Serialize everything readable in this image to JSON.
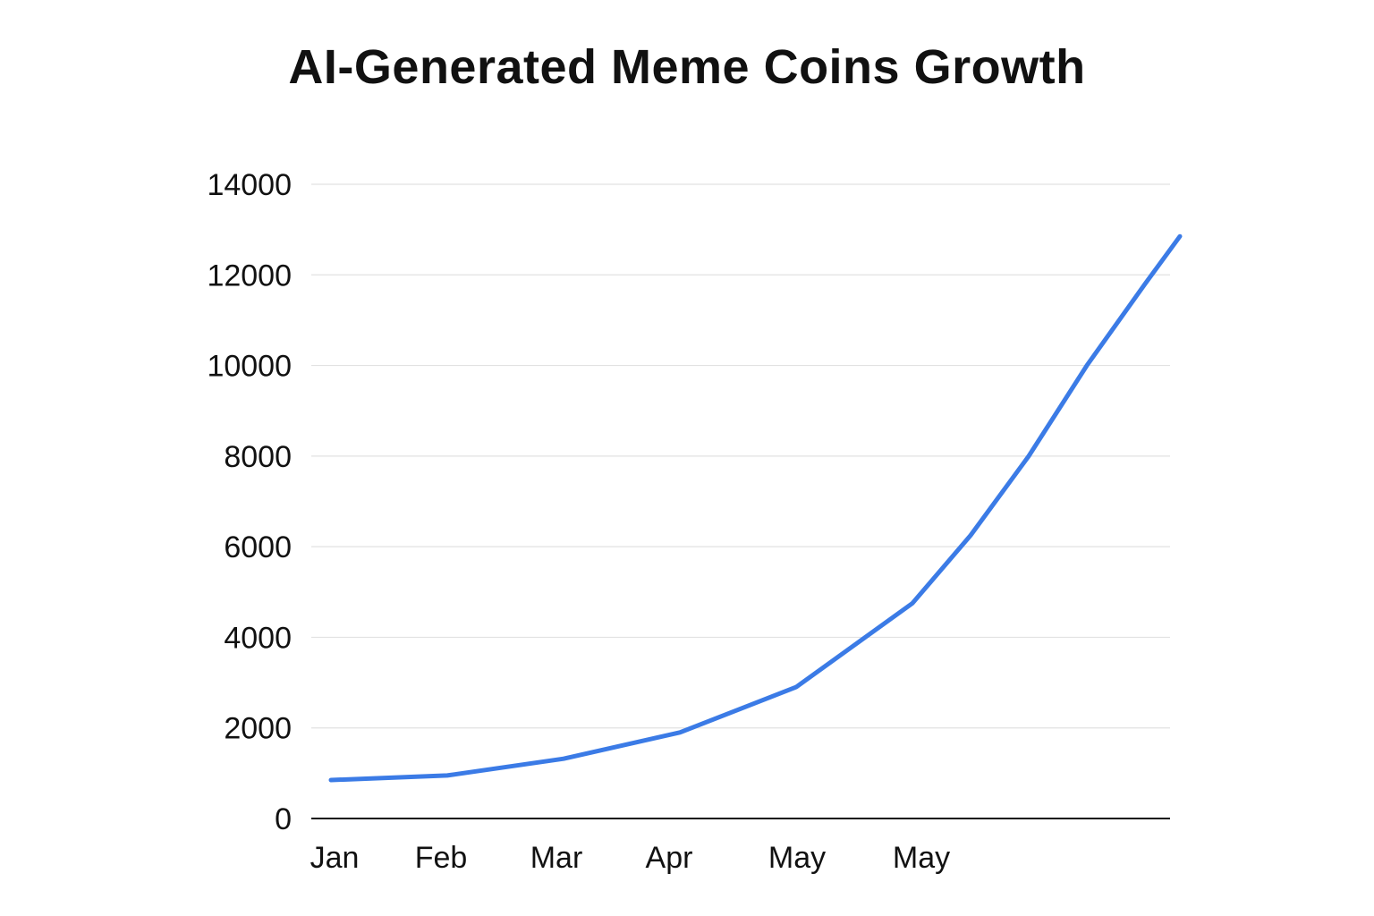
{
  "chart_data": {
    "type": "line",
    "title": "AI-Generated Meme Coins Growth",
    "xlabel": "",
    "ylabel": "",
    "ylim": [
      0,
      14000
    ],
    "yticks": [
      0,
      2000,
      4000,
      6000,
      8000,
      10000,
      12000,
      14000
    ],
    "x_tick_labels": [
      "Jan",
      "Feb",
      "Mar",
      "Apr",
      "May",
      "May"
    ],
    "grid": true,
    "legend": "none",
    "colors": {
      "line": "#3B7BE6"
    },
    "series": [
      {
        "points": [
          {
            "x": 0.0,
            "y": 850
          },
          {
            "x": 1.0,
            "y": 950
          },
          {
            "x": 2.0,
            "y": 1320
          },
          {
            "x": 3.0,
            "y": 1900
          },
          {
            "x": 4.0,
            "y": 2900
          },
          {
            "x": 5.0,
            "y": 4750
          },
          {
            "x": 5.5,
            "y": 6250
          },
          {
            "x": 6.0,
            "y": 8000
          },
          {
            "x": 6.5,
            "y": 10000
          },
          {
            "x": 7.0,
            "y": 11800
          },
          {
            "x": 7.3,
            "y": 12850
          }
        ]
      }
    ]
  }
}
